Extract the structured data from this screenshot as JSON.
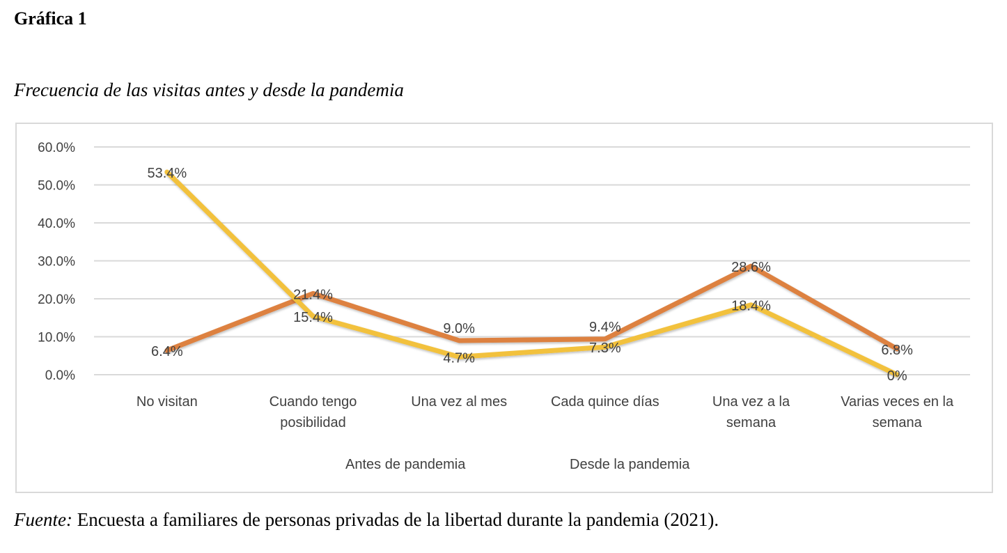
{
  "figure_label": "Gráfica 1",
  "source": {
    "prefix": "Fuente:",
    "text": " Encuesta a familiares de personas privadas de la libertad durante la pandemia (2021)."
  },
  "chart_data": {
    "type": "line",
    "title": "Frecuencia de las visitas antes y desde la pandemia",
    "categories": [
      [
        "No visitan"
      ],
      [
        "Cuando tengo",
        "posibilidad"
      ],
      [
        "Una vez al mes"
      ],
      [
        "Cada quince días"
      ],
      [
        "Una vez a la",
        "semana"
      ],
      [
        "Varias veces en la",
        "semana"
      ]
    ],
    "ylim": [
      0,
      60
    ],
    "yticks": [
      0,
      10,
      20,
      30,
      40,
      50,
      60
    ],
    "ytick_labels": [
      "0.0%",
      "10.0%",
      "20.0%",
      "30.0%",
      "40.0%",
      "50.0%",
      "60.0%"
    ],
    "grid": true,
    "legend_position": "bottom",
    "series": [
      {
        "name": "Antes de pandemia",
        "color": "#DD8140",
        "values": [
          6.4,
          21.4,
          9.0,
          9.4,
          28.6,
          6.8
        ],
        "labels": [
          "6.4%",
          "21.4%",
          "9.0%",
          "9.4%",
          "28.6%",
          "6.8%"
        ]
      },
      {
        "name": "Desde la pandemia",
        "color": "#F2C13C",
        "values": [
          53.4,
          15.4,
          4.7,
          7.3,
          18.4,
          0
        ],
        "labels": [
          "53.4%",
          "15.4%",
          "4.7%",
          "7.3%",
          "18.4%",
          "0%"
        ]
      }
    ]
  }
}
